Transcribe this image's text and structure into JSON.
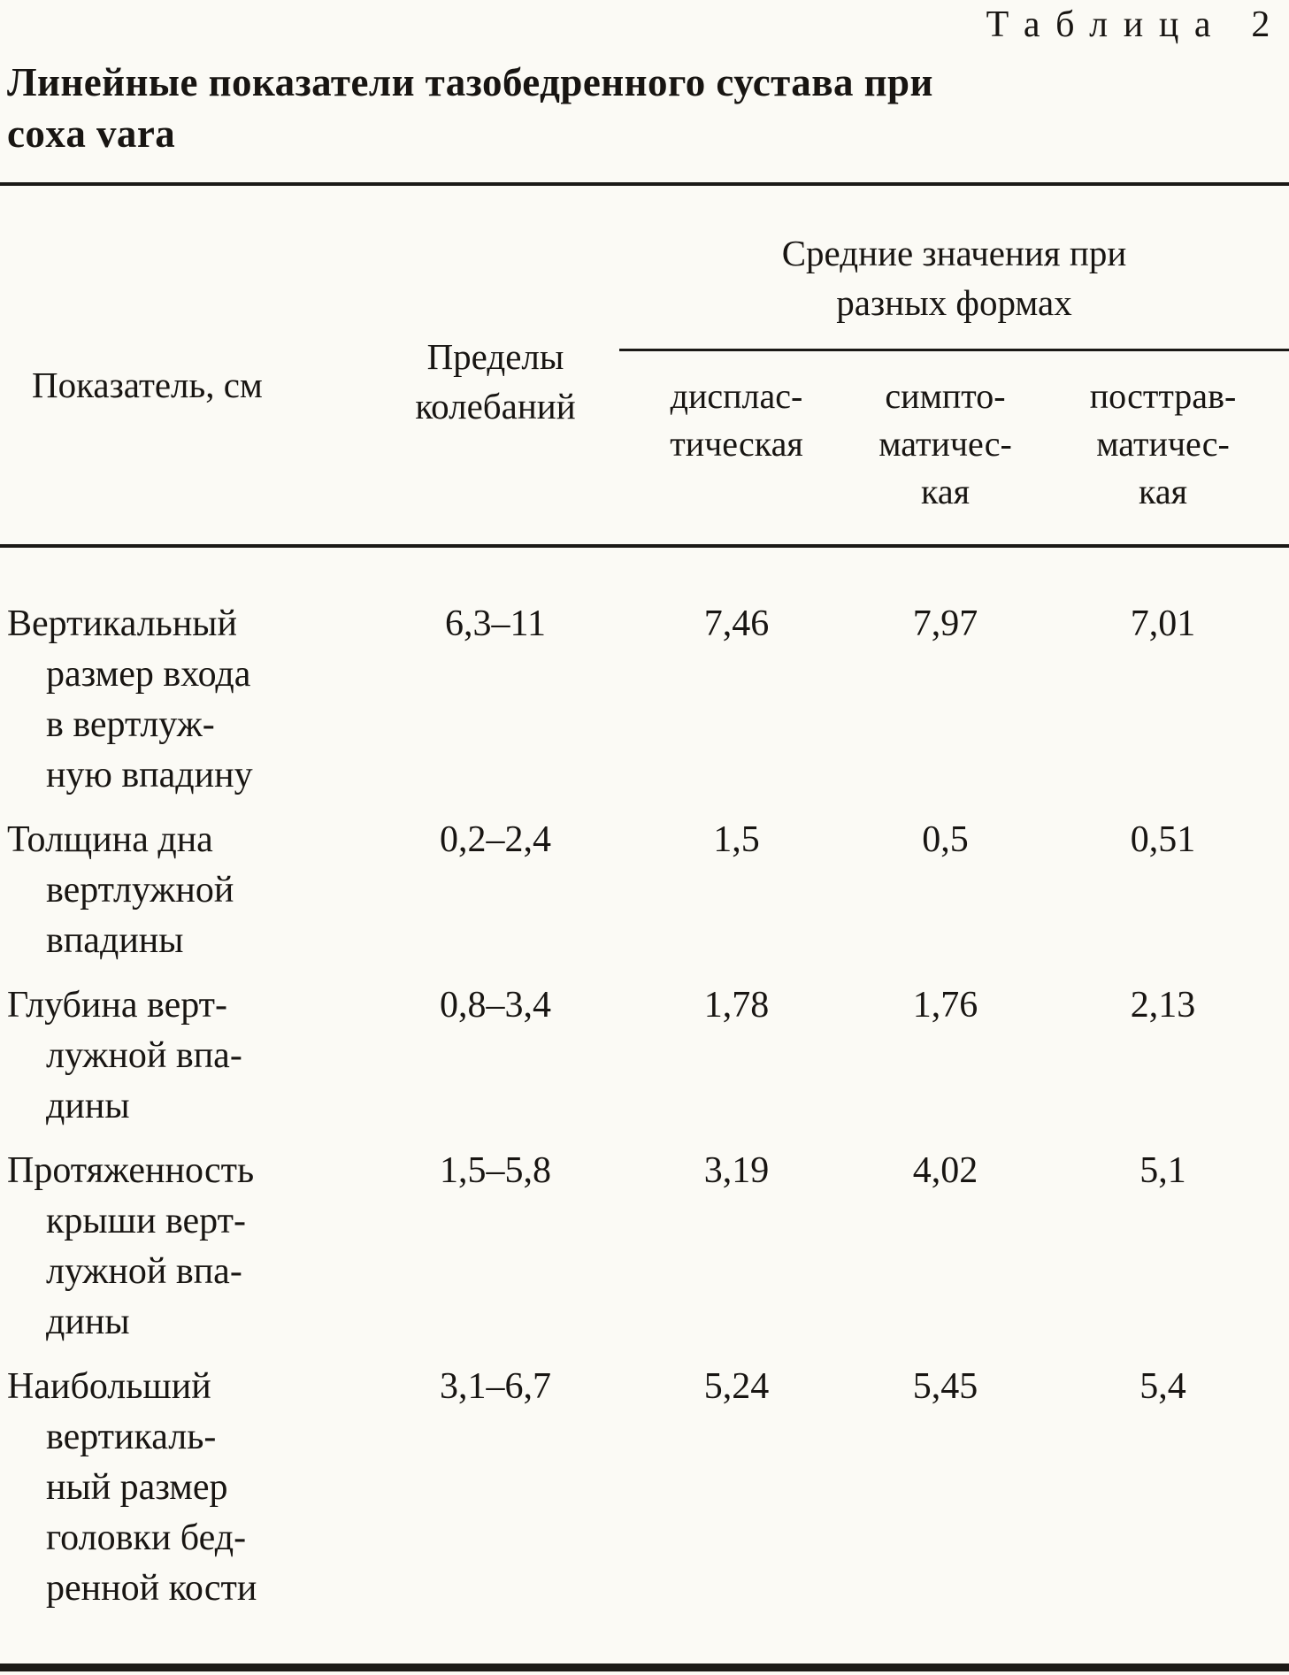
{
  "page": {
    "table_label": "Таблица 2",
    "title": "Линейные показатели тазобедренного сустава при\ncoxa vara"
  },
  "header": {
    "indicator": "Показатель, см",
    "range": "Пределы\nколебаний",
    "group": "Средние значения при\nразных формах",
    "subcols": [
      "дисплас-\nтическая",
      "симпто-\nматичес-\nкая",
      "посттрав-\nматичес-\nкая"
    ]
  },
  "rows": [
    {
      "indicator": "Вертикальный\nразмер входа\nв вертлуж-\nную впадину",
      "range": "6,3–11",
      "values": [
        "7,46",
        "7,97",
        "7,01"
      ]
    },
    {
      "indicator": "Толщина дна\nвертлужной\nвпадины",
      "range": "0,2–2,4",
      "values": [
        "1,5",
        "0,5",
        "0,51"
      ]
    },
    {
      "indicator": "Глубина верт-\nлужной впа-\nдины",
      "range": "0,8–3,4",
      "values": [
        "1,78",
        "1,76",
        "2,13"
      ]
    },
    {
      "indicator": "Протяженность\nкрыши верт-\nлужной впа-\nдины",
      "range": "1,5–5,8",
      "values": [
        "3,19",
        "4,02",
        "5,1"
      ]
    },
    {
      "indicator": "Наибольший\nвертикаль-\nный размер\nголовки бед-\nренной кости",
      "range": "3,1–6,7",
      "values": [
        "5,24",
        "5,45",
        "5,4"
      ]
    }
  ]
}
